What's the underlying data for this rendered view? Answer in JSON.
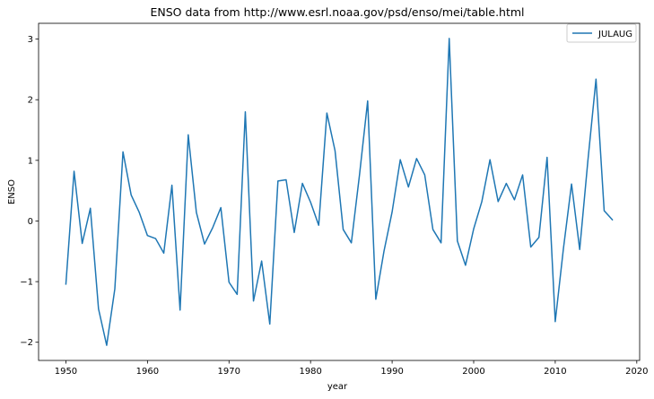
{
  "chart_data": {
    "type": "line",
    "title": "ENSO data from http://www.esrl.noaa.gov/psd/enso/mei/table.html",
    "xlabel": "year",
    "ylabel": "ENSO",
    "xlim": [
      1946.65,
      2020.35
    ],
    "ylim": [
      -2.3,
      3.26
    ],
    "x_ticks": [
      1950,
      1960,
      1970,
      1980,
      1990,
      2000,
      2010,
      2020
    ],
    "y_ticks": [
      -2,
      -1,
      0,
      1,
      2,
      3
    ],
    "x_tick_labels": [
      "1950",
      "1960",
      "1970",
      "1980",
      "1990",
      "2000",
      "2010",
      "2020"
    ],
    "y_tick_labels": [
      "−2",
      "−1",
      "0",
      "1",
      "2",
      "3"
    ],
    "grid": false,
    "legend_position": "top-right",
    "series": [
      {
        "name": "JULAUG",
        "color": "#1f77b4",
        "x": [
          1950,
          1951,
          1952,
          1953,
          1954,
          1955,
          1956,
          1957,
          1958,
          1959,
          1960,
          1961,
          1962,
          1963,
          1964,
          1965,
          1966,
          1967,
          1968,
          1969,
          1970,
          1971,
          1972,
          1973,
          1974,
          1975,
          1976,
          1977,
          1978,
          1979,
          1980,
          1981,
          1982,
          1983,
          1984,
          1985,
          1986,
          1987,
          1988,
          1989,
          1990,
          1991,
          1992,
          1993,
          1994,
          1995,
          1996,
          1997,
          1998,
          1999,
          2000,
          2001,
          2002,
          2003,
          2004,
          2005,
          2006,
          2007,
          2008,
          2009,
          2010,
          2011,
          2012,
          2013,
          2014,
          2015,
          2016,
          2017
        ],
        "values": [
          -1.04,
          0.82,
          -0.37,
          0.21,
          -1.45,
          -2.05,
          -1.12,
          1.14,
          0.43,
          0.14,
          -0.24,
          -0.29,
          -0.53,
          0.59,
          -1.47,
          1.42,
          0.14,
          -0.38,
          -0.11,
          0.22,
          -1.01,
          -1.21,
          1.8,
          -1.32,
          -0.66,
          -1.7,
          0.66,
          0.68,
          -0.19,
          0.62,
          0.31,
          -0.07,
          1.78,
          1.16,
          -0.14,
          -0.36,
          0.76,
          1.98,
          -1.29,
          -0.5,
          0.15,
          1.01,
          0.56,
          1.03,
          0.76,
          -0.14,
          -0.36,
          3.01,
          -0.33,
          -0.73,
          -0.13,
          0.32,
          1.01,
          0.32,
          0.62,
          0.35,
          0.76,
          -0.43,
          -0.27,
          1.05,
          -1.66,
          -0.46,
          0.61,
          -0.47,
          0.99,
          2.34,
          0.17,
          0.02
        ]
      }
    ]
  }
}
